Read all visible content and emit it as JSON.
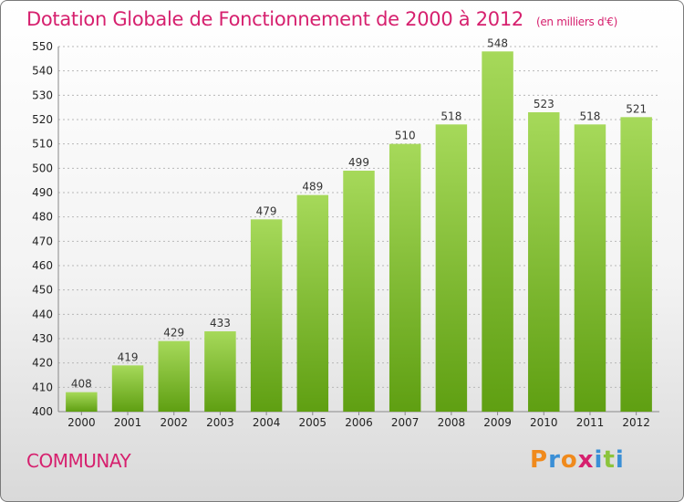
{
  "header": {
    "title": "Dotation Globale de Fonctionnement de 2000 à 2012",
    "subtitle": "(en milliers d'€)"
  },
  "footer": {
    "commune": "COMMUNAY",
    "logo_text": "Proxiti"
  },
  "colors": {
    "title": "#d6206e",
    "bar_light": "#a6d95a",
    "bar_dark": "#5f9f12",
    "logo_letters": [
      "#f08a1c",
      "#3a8fd6",
      "#f08a1c",
      "#d6206e",
      "#3a8fd6",
      "#8cc43c",
      "#3a8fd6"
    ]
  },
  "chart_data": {
    "type": "bar",
    "title": "Dotation Globale de Fonctionnement de 2000 à 2012",
    "subtitle": "(en milliers d'€)",
    "categories": [
      "2000",
      "2001",
      "2002",
      "2003",
      "2004",
      "2005",
      "2006",
      "2007",
      "2008",
      "2009",
      "2010",
      "2011",
      "2012"
    ],
    "values": [
      408,
      419,
      429,
      433,
      479,
      489,
      499,
      510,
      518,
      548,
      523,
      518,
      521
    ],
    "xlabel": "",
    "ylabel": "",
    "ylim": [
      400,
      550
    ],
    "yticks": [
      400,
      410,
      420,
      430,
      440,
      450,
      460,
      470,
      480,
      490,
      500,
      510,
      520,
      530,
      540,
      550
    ],
    "grid": true,
    "legend": "none"
  }
}
